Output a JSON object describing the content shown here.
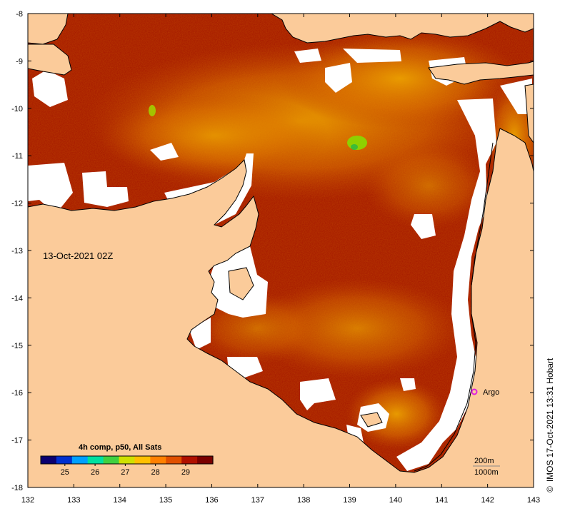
{
  "map": {
    "timestamp": "13-Oct-2021 02Z",
    "credit": "IMOS 17-Oct-2021 13:31 Hobart",
    "credit_symbol": "©",
    "x_ticks": [
      "132",
      "133",
      "134",
      "135",
      "136",
      "137",
      "138",
      "139",
      "140",
      "141",
      "142",
      "143"
    ],
    "y_ticks": [
      "-8",
      "-9",
      "-10",
      "-11",
      "-12",
      "-13",
      "-14",
      "-15",
      "-16",
      "-17",
      "-18"
    ],
    "argo_label": "Argo",
    "isobath_labels": [
      "200m",
      "1000m"
    ]
  },
  "colorbar": {
    "title": "4h comp, p50, All Sats",
    "ticks": [
      "25",
      "26",
      "27",
      "28",
      "29"
    ],
    "range": [
      24.2,
      29.9
    ],
    "colors": [
      "#0a0070",
      "#0030d0",
      "#00a0ff",
      "#00e0a0",
      "#40d040",
      "#d0e000",
      "#ffc000",
      "#ff8000",
      "#e05000",
      "#b01000",
      "#7a0000"
    ]
  },
  "colors": {
    "land": "#fbcb9a",
    "nodata": "#ffffff",
    "sst_dark": "#9a0c00",
    "sst_mid": "#c23c00",
    "sst_warm": "#e28a00",
    "argo": "#e020e0"
  }
}
